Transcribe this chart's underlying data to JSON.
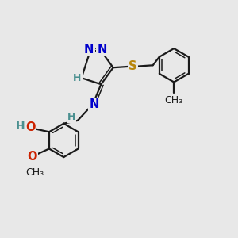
{
  "background_color": "#e8e8e8",
  "line_color": "#1a1a1a",
  "lw": 1.6,
  "lw_double": 1.1,
  "atom_colors": {
    "N": "#0000cc",
    "N_imine": "#0000cc",
    "H_imine": "#4a9090",
    "O": "#cc2200",
    "S": "#b8860b",
    "C": "#1a1a1a",
    "H": "#4a9090"
  },
  "fs": 10.5,
  "fs_small": 9.0
}
